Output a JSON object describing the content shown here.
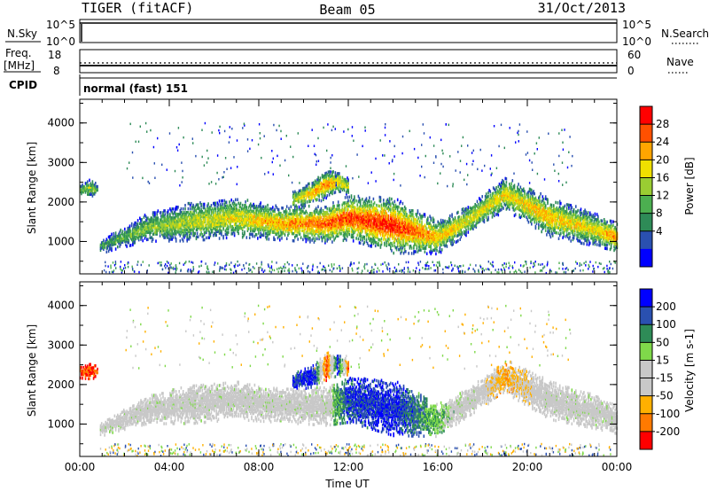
{
  "header": {
    "radar": "TIGER (fitACF)",
    "beam": "Beam 05",
    "date": "31/Oct/2013"
  },
  "top_panels": {
    "nsky": {
      "label": "N.Sky",
      "ticks": [
        "10^5",
        "10^0"
      ],
      "right_label": "N.Search",
      "right_ticks": [
        "10^5",
        "10^0"
      ]
    },
    "freq": {
      "label_line1": "Freq.",
      "label_line2": "[MHz]",
      "ticks": [
        "18",
        "8"
      ],
      "right_label": "Nave",
      "right_ticks": [
        "60",
        "0"
      ]
    },
    "cpid": {
      "label": "CPID",
      "value": "normal (fast) 151"
    }
  },
  "chart_data": [
    {
      "type": "heatmap",
      "name": "power",
      "ylabel": "Slant Range [km]",
      "yticks": [
        "4000",
        "3000",
        "2000",
        "1000"
      ],
      "ylim": [
        180,
        4600
      ],
      "xlim": [
        0,
        24
      ],
      "colorbar_label": "Power [dB]",
      "colorbar_ticks": [
        "28",
        "24",
        "20",
        "16",
        "12",
        "8",
        "4"
      ],
      "colors": [
        "#0000ff",
        "#2a50b0",
        "#2e8b57",
        "#4caf50",
        "#9acd32",
        "#f0e000",
        "#ffa500",
        "#ff5000",
        "#ff0000"
      ],
      "bands": [
        {
          "x": [
            0.9,
            1.5,
            3.0,
            5.0,
            7.0,
            9.0,
            11.0,
            12.0,
            14.0,
            16.0,
            17.5,
            19.0,
            21.0,
            23.0,
            24.0
          ],
          "center": [
            850,
            1000,
            1350,
            1500,
            1600,
            1450,
            1450,
            1600,
            1400,
            1100,
            1600,
            2200,
            1600,
            1300,
            1100
          ],
          "width": [
            120,
            150,
            250,
            350,
            350,
            300,
            350,
            400,
            500,
            300,
            250,
            300,
            350,
            300,
            250
          ],
          "peak": [
            0.3,
            0.35,
            0.45,
            0.55,
            0.6,
            0.75,
            0.85,
            0.9,
            0.95,
            0.7,
            0.6,
            0.65,
            0.7,
            0.6,
            0.85
          ]
        },
        {
          "x": [
            9.5,
            10.5,
            11.0,
            11.5,
            12.0
          ],
          "center": [
            2050,
            2250,
            2450,
            2500,
            2400
          ],
          "width": [
            150,
            220,
            250,
            200,
            150
          ],
          "peak": [
            0.55,
            0.75,
            0.8,
            0.7,
            0.5
          ]
        },
        {
          "x": [
            0.0,
            0.4,
            0.8
          ],
          "center": [
            2300,
            2350,
            2300
          ],
          "width": [
            100,
            150,
            100
          ],
          "peak": [
            0.4,
            0.5,
            0.4
          ]
        }
      ]
    },
    {
      "type": "heatmap",
      "name": "velocity",
      "ylabel": "Slant Range [km]",
      "yticks": [
        "4000",
        "3000",
        "2000",
        "1000"
      ],
      "ylim": [
        180,
        4600
      ],
      "xlim": [
        0,
        24
      ],
      "xticks": [
        "00:00",
        "04:00",
        "08:00",
        "12:00",
        "16:00",
        "20:00",
        "00:00"
      ],
      "xlabel": "Time UT",
      "colorbar_label": "Velocity [m s-1]",
      "colorbar_ticks": [
        "200",
        "100",
        "50",
        "15",
        "-15",
        "-50",
        "-100",
        "-200"
      ],
      "colors": [
        "#ff0000",
        "#ff7a00",
        "#ffb000",
        "#c8c8c8",
        "#c8c8c8",
        "#7fd94a",
        "#2e8b57",
        "#2a50b0",
        "#0000ff"
      ],
      "bands": [
        {
          "x": [
            0.9,
            1.5,
            3.0,
            5.0,
            7.0,
            9.0,
            11.0,
            12.0,
            14.0,
            16.0,
            17.5,
            19.0,
            21.0,
            23.0,
            24.0
          ],
          "center": [
            850,
            1000,
            1350,
            1500,
            1600,
            1450,
            1450,
            1600,
            1400,
            1100,
            1600,
            2200,
            1600,
            1300,
            1100
          ],
          "width": [
            120,
            150,
            250,
            350,
            350,
            300,
            350,
            400,
            500,
            300,
            250,
            300,
            350,
            300,
            250
          ],
          "vel": [
            0,
            0,
            0,
            0,
            0,
            0,
            0,
            0.8,
            0.9,
            0.3,
            0,
            -0.5,
            0,
            0,
            0
          ]
        },
        {
          "x": [
            9.5,
            10.5,
            11.0,
            11.5,
            12.0
          ],
          "center": [
            2050,
            2250,
            2450,
            2500,
            2400
          ],
          "width": [
            150,
            220,
            250,
            200,
            150
          ],
          "vel": [
            0.8,
            0.9,
            -0.9,
            0.9,
            -0.8
          ]
        },
        {
          "x": [
            0.0,
            0.4,
            0.8
          ],
          "center": [
            2300,
            2350,
            2300
          ],
          "width": [
            100,
            150,
            100
          ],
          "vel": [
            -0.9,
            -0.9,
            -0.8
          ]
        }
      ]
    }
  ]
}
